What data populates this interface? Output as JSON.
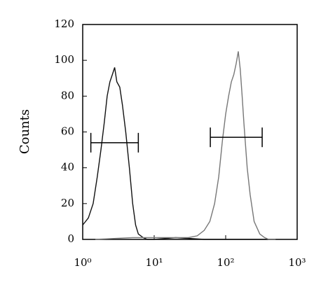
{
  "chart_data": {
    "type": "line",
    "y_label": "Counts",
    "x_log": true,
    "xlim": [
      1,
      1000
    ],
    "xticks": [
      {
        "value": 1,
        "label": "10⁰"
      },
      {
        "value": 10,
        "label": "10¹"
      },
      {
        "value": 100,
        "label": "10²"
      },
      {
        "value": 1000,
        "label": "10³"
      }
    ],
    "ylim": [
      0,
      120
    ],
    "yticks": [
      0,
      20,
      40,
      60,
      80,
      100,
      120
    ],
    "series": [
      {
        "color": "#111111",
        "x": [
          1,
          1.2,
          1.4,
          1.6,
          1.8,
          2,
          2.2,
          2.4,
          2.6,
          2.8,
          3,
          3.3,
          3.6,
          4,
          4.5,
          5,
          5.5,
          6,
          7,
          8,
          10,
          20,
          50,
          100,
          200,
          500
        ],
        "values": [
          8,
          12,
          20,
          35,
          50,
          65,
          80,
          88,
          92,
          96,
          88,
          85,
          75,
          60,
          40,
          20,
          8,
          3,
          1,
          0,
          0,
          1,
          0,
          0,
          0,
          0
        ]
      },
      {
        "color": "#777777",
        "x": [
          1.5,
          5,
          10,
          20,
          30,
          40,
          50,
          60,
          70,
          80,
          90,
          100,
          110,
          120,
          130,
          140,
          150,
          160,
          170,
          180,
          200,
          220,
          250,
          300,
          350,
          400,
          500
        ],
        "values": [
          0,
          1,
          1,
          1,
          1,
          2,
          5,
          10,
          20,
          35,
          55,
          70,
          80,
          88,
          92,
          98,
          105,
          95,
          80,
          65,
          40,
          25,
          10,
          3,
          1,
          0,
          0
        ]
      }
    ],
    "markers": [
      {
        "x": [
          1.3,
          6
        ],
        "y": 54
      },
      {
        "x": [
          61,
          324
        ],
        "y": 57
      }
    ]
  }
}
